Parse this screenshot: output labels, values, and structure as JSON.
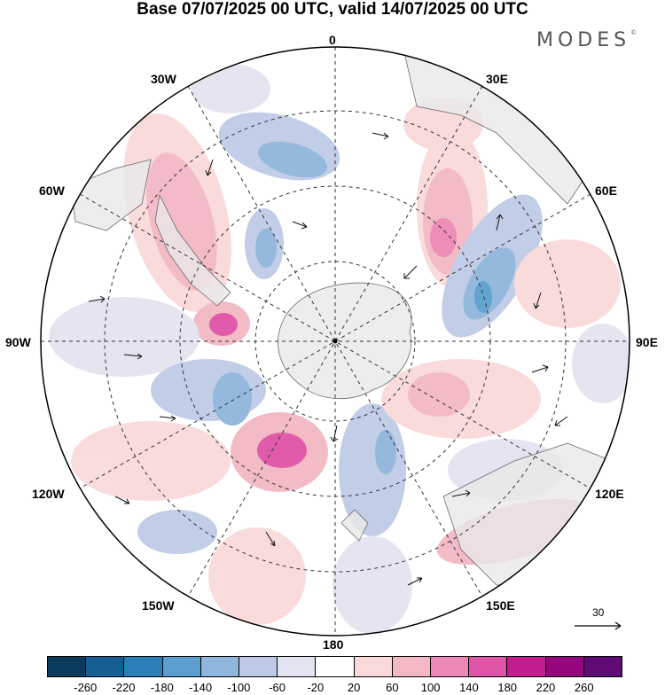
{
  "title": "Base 07/07/2025 00 UTC, valid 14/07/2025 00 UTC",
  "brand": "MODES",
  "brand_mark": "©",
  "longitude_labels": [
    "0",
    "30E",
    "60E",
    "90E",
    "120E",
    "150E",
    "180",
    "150W",
    "120W",
    "90W",
    "60W",
    "30W"
  ],
  "reference_vector": {
    "label": "30",
    "icon": "arrow-right-icon"
  },
  "colorbar": {
    "colors": [
      "#0b3b5c",
      "#155f93",
      "#2b7fb8",
      "#5a9fcf",
      "#8fb6dc",
      "#bfcbe6",
      "#e3e4f1",
      "#ffffff",
      "#f9dada",
      "#f3b8c4",
      "#ec88b5",
      "#df54a6",
      "#c31c8e",
      "#96077d",
      "#5e0b73"
    ],
    "ticks": [
      "-260",
      "-220",
      "-180",
      "-140",
      "-100",
      "-60",
      "-20",
      "20",
      "60",
      "100",
      "140",
      "180",
      "220",
      "260"
    ]
  },
  "map": {
    "projection": "polar-stereographic-south",
    "field_colors": {
      "land": "#e9e9e9",
      "coast": "#6b6b6b",
      "grid": "#333333",
      "arrow": "#111111"
    }
  }
}
